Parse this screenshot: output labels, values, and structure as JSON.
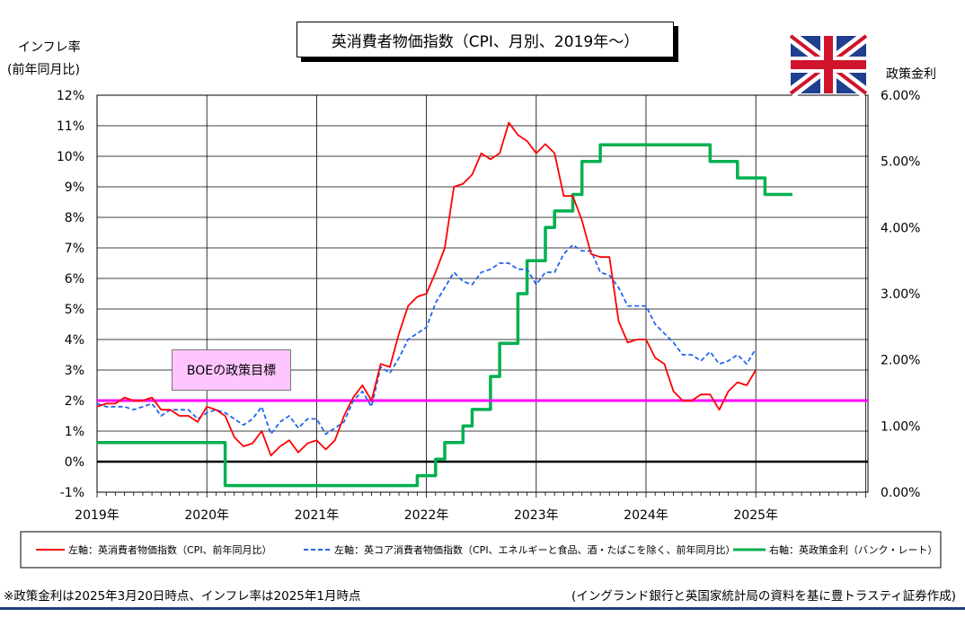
{
  "title": "英消費者物価指数（CPI、月別、2019年～）",
  "left_axis_title_1": "インフレ率",
  "left_axis_title_2": "(前年同月比)",
  "right_axis_title": "政策金利",
  "boe_label": "BOEの政策目標",
  "footnote_left": "※政策金利は2025年3月20日時点、インフレ率は2025年1月時点",
  "footnote_right": "(イングランド銀行と英国家統計局の資料を基に豊トラスティ証券作成)",
  "colors": {
    "cpi": "#ff0000",
    "core": "#2266ee",
    "rate": "#00b050",
    "target": "#ff00ff",
    "zero": "#000000"
  },
  "chart_data": {
    "type": "line",
    "x_start": "2019-01",
    "x_labels": [
      "2019年",
      "2020年",
      "2021年",
      "2022年",
      "2023年",
      "2024年",
      "2025年"
    ],
    "left_axis": {
      "ylim": [
        -1,
        12
      ],
      "tick_labels": [
        "-1%",
        "0%",
        "1%",
        "2%",
        "3%",
        "4%",
        "5%",
        "6%",
        "7%",
        "8%",
        "9%",
        "10%",
        "11%",
        "12%"
      ]
    },
    "right_axis": {
      "ylim": [
        0,
        6
      ],
      "tick_labels": [
        "0.00%",
        "1.00%",
        "2.00%",
        "3.00%",
        "4.00%",
        "5.00%",
        "6.00%"
      ]
    },
    "grid": true,
    "target_line": 2,
    "series": [
      {
        "name": "左軸：英消費者物価指数（CPI、前年同月比）",
        "axis": "left",
        "style": "solid",
        "values": [
          1.8,
          1.9,
          1.9,
          2.1,
          2.0,
          2.0,
          2.1,
          1.7,
          1.7,
          1.5,
          1.5,
          1.3,
          1.8,
          1.7,
          1.5,
          0.8,
          0.5,
          0.6,
          1.0,
          0.2,
          0.5,
          0.7,
          0.3,
          0.6,
          0.7,
          0.4,
          0.7,
          1.5,
          2.1,
          2.5,
          2.0,
          3.2,
          3.1,
          4.2,
          5.1,
          5.4,
          5.5,
          6.2,
          7.0,
          9.0,
          9.1,
          9.4,
          10.1,
          9.9,
          10.1,
          11.1,
          10.7,
          10.5,
          10.1,
          10.4,
          10.1,
          8.7,
          8.7,
          7.9,
          6.8,
          6.7,
          6.7,
          4.6,
          3.9,
          4.0,
          4.0,
          3.4,
          3.2,
          2.3,
          2.0,
          2.0,
          2.2,
          2.2,
          1.7,
          2.3,
          2.6,
          2.5,
          3.0
        ]
      },
      {
        "name": "左軸：英コア消費者物価指数（CPI、エネルギーと食品、酒・たばこを除く、前年同月比）",
        "axis": "left",
        "style": "dashed",
        "values": [
          1.9,
          1.8,
          1.8,
          1.8,
          1.7,
          1.8,
          1.9,
          1.5,
          1.7,
          1.7,
          1.7,
          1.4,
          1.6,
          1.7,
          1.6,
          1.4,
          1.2,
          1.4,
          1.8,
          0.9,
          1.3,
          1.5,
          1.1,
          1.4,
          1.4,
          0.9,
          1.1,
          1.3,
          2.0,
          2.3,
          1.8,
          3.1,
          2.9,
          3.4,
          4.0,
          4.2,
          4.4,
          5.2,
          5.7,
          6.2,
          5.9,
          5.8,
          6.2,
          6.3,
          6.5,
          6.5,
          6.3,
          6.3,
          5.8,
          6.2,
          6.2,
          6.8,
          7.1,
          6.9,
          6.9,
          6.2,
          6.1,
          5.7,
          5.1,
          5.1,
          5.1,
          4.5,
          4.2,
          3.9,
          3.5,
          3.5,
          3.3,
          3.6,
          3.2,
          3.3,
          3.5,
          3.2,
          3.7
        ]
      },
      {
        "name": "右軸：英政策金利（バンク・レート）",
        "axis": "right",
        "style": "solid-thick",
        "values": [
          0.75,
          0.75,
          0.75,
          0.75,
          0.75,
          0.75,
          0.75,
          0.75,
          0.75,
          0.75,
          0.75,
          0.75,
          0.75,
          0.75,
          0.1,
          0.1,
          0.1,
          0.1,
          0.1,
          0.1,
          0.1,
          0.1,
          0.1,
          0.1,
          0.1,
          0.1,
          0.1,
          0.1,
          0.1,
          0.1,
          0.1,
          0.1,
          0.1,
          0.1,
          0.1,
          0.25,
          0.25,
          0.5,
          0.75,
          0.75,
          1.0,
          1.25,
          1.25,
          1.75,
          2.25,
          2.25,
          3.0,
          3.5,
          3.5,
          4.0,
          4.25,
          4.25,
          4.5,
          5.0,
          5.0,
          5.25,
          5.25,
          5.25,
          5.25,
          5.25,
          5.25,
          5.25,
          5.25,
          5.25,
          5.25,
          5.25,
          5.25,
          5.0,
          5.0,
          5.0,
          4.75,
          4.75,
          4.75,
          4.5,
          4.5,
          4.5
        ]
      }
    ]
  }
}
